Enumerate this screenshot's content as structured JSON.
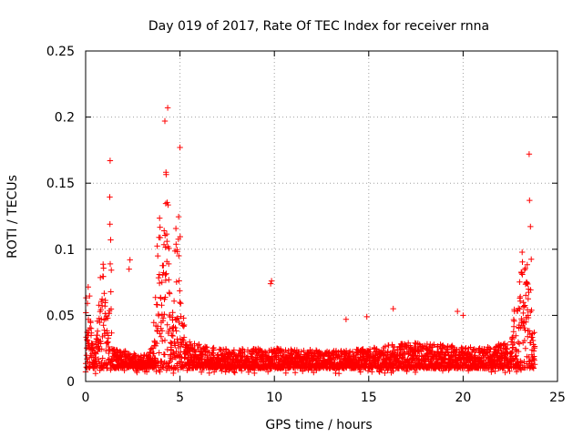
{
  "chart_data": {
    "type": "scatter",
    "title": "Day 019 of 2017, Rate Of TEC Index for receiver rnna",
    "xlabel": "GPS time / hours",
    "ylabel": "ROTI / TECUs",
    "xlim": [
      0,
      25
    ],
    "ylim": [
      0,
      0.25
    ],
    "xticks": [
      0,
      5,
      10,
      15,
      20,
      25
    ],
    "yticks": [
      0,
      0.05,
      0.1,
      0.15,
      0.2,
      0.25
    ],
    "xtick_labels": [
      "0",
      "5",
      "10",
      "15",
      "20",
      "25"
    ],
    "ytick_labels": [
      "0",
      "0.05",
      "0.1",
      "0.15",
      "0.2",
      "0.25"
    ],
    "grid": true,
    "marker": "+",
    "color": "#ff0000",
    "point_spacing_hours": 0.008,
    "baseline_envelope": {
      "x": [
        0,
        1.5,
        3,
        4,
        5.5,
        7,
        9,
        11,
        13,
        15,
        17,
        19,
        21,
        22.3,
        23.8
      ],
      "y": [
        0.03,
        0.025,
        0.02,
        0.03,
        0.03,
        0.025,
        0.025,
        0.025,
        0.023,
        0.025,
        0.03,
        0.028,
        0.025,
        0.03,
        0.04
      ]
    },
    "peaks": [
      {
        "x": 0.1,
        "width": 0.25,
        "height": 0.08
      },
      {
        "x": 0.9,
        "width": 0.35,
        "height": 0.09
      },
      {
        "x": 1.3,
        "width": 0.08,
        "height": 0.16
      },
      {
        "x": 4.0,
        "width": 0.35,
        "height": 0.16
      },
      {
        "x": 4.3,
        "width": 0.15,
        "height": 0.2
      },
      {
        "x": 4.9,
        "width": 0.3,
        "height": 0.14
      },
      {
        "x": 23.1,
        "width": 0.5,
        "height": 0.1
      },
      {
        "x": 23.5,
        "width": 0.15,
        "height": 0.16
      }
    ],
    "outliers": [
      {
        "x": 2.3,
        "y": 0.085
      },
      {
        "x": 2.35,
        "y": 0.092
      },
      {
        "x": 9.8,
        "y": 0.074
      },
      {
        "x": 9.85,
        "y": 0.076
      },
      {
        "x": 13.8,
        "y": 0.047
      },
      {
        "x": 14.9,
        "y": 0.049
      },
      {
        "x": 16.3,
        "y": 0.055
      },
      {
        "x": 19.7,
        "y": 0.053
      },
      {
        "x": 20.0,
        "y": 0.05
      },
      {
        "x": 4.35,
        "y": 0.207
      },
      {
        "x": 4.2,
        "y": 0.197
      },
      {
        "x": 5.0,
        "y": 0.177
      },
      {
        "x": 23.5,
        "y": 0.172
      },
      {
        "x": 1.3,
        "y": 0.167
      }
    ],
    "data_end_hour": 23.8
  }
}
